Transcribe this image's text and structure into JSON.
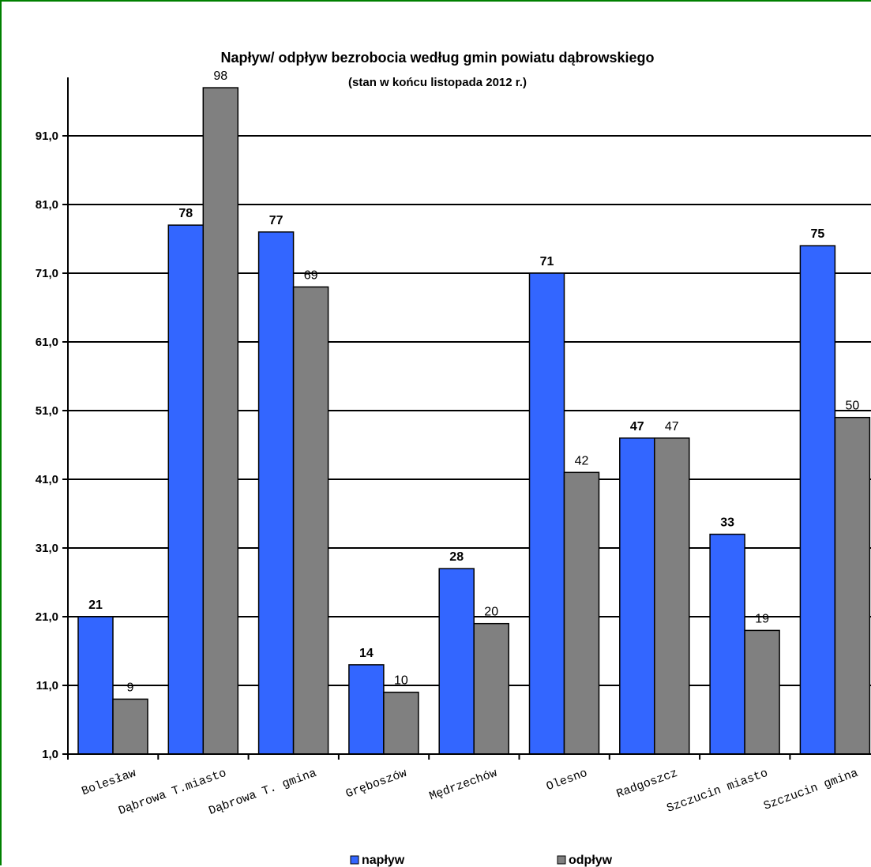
{
  "chart_data": {
    "type": "bar",
    "title": "Napływ/ odpływ bezrobocia według gmin powiatu dąbrowskiego",
    "subtitle": "(stan w końcu listopada 2012 r.)",
    "categories": [
      "Bolesław",
      "Dąbrowa T.miasto",
      "Dąbrowa T. gmina",
      "Gręboszów",
      "Mędrzechów",
      "Olesno",
      "Radgoszcz",
      "Szczucin miasto",
      "Szczucin gmina"
    ],
    "series": [
      {
        "name": "napływ",
        "values": [
          21,
          78,
          77,
          14,
          28,
          71,
          47,
          33,
          75
        ],
        "color": "#3366ff"
      },
      {
        "name": "odpływ",
        "values": [
          9,
          98,
          69,
          10,
          20,
          42,
          47,
          19,
          50
        ],
        "color": "#808080"
      }
    ],
    "data_labels": [
      [
        "21",
        "78",
        "77",
        "14",
        "28",
        "71",
        "47",
        "33",
        "75"
      ],
      [
        "9",
        "98",
        "69",
        "10",
        "20",
        "42",
        "47",
        "19",
        "50"
      ]
    ],
    "yticks": [
      "1,0",
      "11,0",
      "21,0",
      "31,0",
      "41,0",
      "51,0",
      "61,0",
      "71,0",
      "81,0",
      "91,0"
    ],
    "ylim": [
      1,
      101
    ],
    "grid": true,
    "legend_position": "bottom"
  }
}
